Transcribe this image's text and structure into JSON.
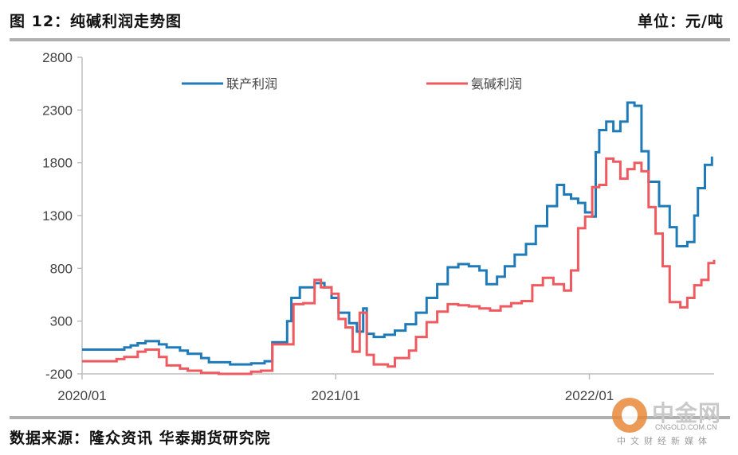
{
  "header": {
    "title": "图 12：纯碱利润走势图",
    "unit": "单位：元/吨"
  },
  "footer": {
    "source": "数据来源：隆众资讯 华泰期货研究院"
  },
  "watermark": {
    "name": "中金网",
    "url": "CNGOLD.COM.CN",
    "slogan": "中文财经新媒体"
  },
  "chart_data": {
    "type": "line",
    "title": "",
    "xlabel": "",
    "ylabel": "",
    "ylim": [
      -200,
      2800
    ],
    "yticks": [
      -200,
      300,
      800,
      1300,
      1800,
      2300,
      2800
    ],
    "xticks": [
      "2020/01",
      "2021/01",
      "2022/01"
    ],
    "xrange_months": [
      "2020/01",
      "2022/03"
    ],
    "grid": false,
    "legend_position": "top",
    "series": [
      {
        "name": "联产利润",
        "color": "#1f7ab8",
        "points": [
          [
            "2020/01/01",
            30
          ],
          [
            "2020/02/01",
            30
          ],
          [
            "2020/03/01",
            50
          ],
          [
            "2020/03/10",
            70
          ],
          [
            "2020/03/20",
            90
          ],
          [
            "2020/04/01",
            110
          ],
          [
            "2020/04/20",
            80
          ],
          [
            "2020/05/01",
            50
          ],
          [
            "2020/05/20",
            20
          ],
          [
            "2020/06/01",
            -10
          ],
          [
            "2020/06/20",
            -50
          ],
          [
            "2020/07/01",
            -90
          ],
          [
            "2020/08/01",
            -110
          ],
          [
            "2020/09/01",
            -100
          ],
          [
            "2020/09/20",
            -80
          ],
          [
            "2020/10/01",
            100
          ],
          [
            "2020/10/15",
            100
          ],
          [
            "2020/10/22",
            300
          ],
          [
            "2020/10/28",
            520
          ],
          [
            "2020/11/10",
            620
          ],
          [
            "2020/12/01",
            660
          ],
          [
            "2020/12/15",
            620
          ],
          [
            "2020/12/25",
            520
          ],
          [
            "2021/01/05",
            380
          ],
          [
            "2021/01/20",
            280
          ],
          [
            "2021/02/01",
            200
          ],
          [
            "2021/02/10",
            420
          ],
          [
            "2021/02/15",
            180
          ],
          [
            "2021/02/25",
            150
          ],
          [
            "2021/03/10",
            170
          ],
          [
            "2021/03/25",
            210
          ],
          [
            "2021/04/10",
            270
          ],
          [
            "2021/04/25",
            380
          ],
          [
            "2021/05/10",
            520
          ],
          [
            "2021/05/25",
            650
          ],
          [
            "2021/06/10",
            810
          ],
          [
            "2021/06/25",
            840
          ],
          [
            "2021/07/10",
            820
          ],
          [
            "2021/07/25",
            780
          ],
          [
            "2021/08/05",
            650
          ],
          [
            "2021/08/20",
            720
          ],
          [
            "2021/09/01",
            820
          ],
          [
            "2021/09/15",
            930
          ],
          [
            "2021/10/01",
            1030
          ],
          [
            "2021/10/15",
            1200
          ],
          [
            "2021/11/01",
            1390
          ],
          [
            "2021/11/15",
            1590
          ],
          [
            "2021/11/25",
            1500
          ],
          [
            "2021/12/05",
            1460
          ],
          [
            "2021/12/15",
            1420
          ],
          [
            "2021/12/25",
            1330
          ],
          [
            "2022/01/05",
            1290
          ],
          [
            "2022/01/10",
            1900
          ],
          [
            "2022/01/15",
            2110
          ],
          [
            "2022/01/25",
            2190
          ],
          [
            "2022/02/05",
            2100
          ],
          [
            "2022/02/15",
            2190
          ],
          [
            "2022/02/25",
            2370
          ],
          [
            "2022/03/05",
            2340
          ],
          [
            "2022/03/15",
            1910
          ],
          [
            "2022/03/25",
            1620
          ],
          [
            "2022/04/10",
            1390
          ],
          [
            "2022/04/25",
            1190
          ],
          [
            "2022/05/05",
            1010
          ],
          [
            "2022/05/20",
            1050
          ],
          [
            "2022/05/30",
            1300
          ],
          [
            "2022/06/05",
            1560
          ],
          [
            "2022/06/15",
            1780
          ],
          [
            "2022/06/25",
            1860
          ]
        ]
      },
      {
        "name": "氨碱利润",
        "color": "#ee5a5f",
        "points": [
          [
            "2020/01/01",
            -80
          ],
          [
            "2020/02/01",
            -80
          ],
          [
            "2020/02/20",
            -60
          ],
          [
            "2020/03/01",
            -40
          ],
          [
            "2020/03/20",
            10
          ],
          [
            "2020/04/01",
            30
          ],
          [
            "2020/04/20",
            -40
          ],
          [
            "2020/05/01",
            -120
          ],
          [
            "2020/05/20",
            -150
          ],
          [
            "2020/06/01",
            -170
          ],
          [
            "2020/06/20",
            -190
          ],
          [
            "2020/07/15",
            -200
          ],
          [
            "2020/08/15",
            -200
          ],
          [
            "2020/09/01",
            -180
          ],
          [
            "2020/09/15",
            -170
          ],
          [
            "2020/10/01",
            80
          ],
          [
            "2020/10/20",
            80
          ],
          [
            "2020/11/01",
            460
          ],
          [
            "2020/11/15",
            470
          ],
          [
            "2020/12/01",
            690
          ],
          [
            "2020/12/10",
            620
          ],
          [
            "2020/12/25",
            560
          ],
          [
            "2021/01/05",
            320
          ],
          [
            "2021/01/15",
            240
          ],
          [
            "2021/01/25",
            10
          ],
          [
            "2021/02/05",
            380
          ],
          [
            "2021/02/15",
            -20
          ],
          [
            "2021/02/25",
            -110
          ],
          [
            "2021/03/15",
            -130
          ],
          [
            "2021/03/25",
            -50
          ],
          [
            "2021/04/15",
            20
          ],
          [
            "2021/04/25",
            150
          ],
          [
            "2021/05/10",
            290
          ],
          [
            "2021/05/25",
            390
          ],
          [
            "2021/06/10",
            460
          ],
          [
            "2021/06/25",
            450
          ],
          [
            "2021/07/10",
            440
          ],
          [
            "2021/07/25",
            420
          ],
          [
            "2021/08/10",
            400
          ],
          [
            "2021/08/25",
            440
          ],
          [
            "2021/09/10",
            470
          ],
          [
            "2021/09/25",
            490
          ],
          [
            "2021/10/10",
            640
          ],
          [
            "2021/10/25",
            710
          ],
          [
            "2021/11/10",
            650
          ],
          [
            "2021/11/25",
            590
          ],
          [
            "2021/12/05",
            780
          ],
          [
            "2021/12/15",
            1180
          ],
          [
            "2021/12/25",
            1290
          ],
          [
            "2022/01/05",
            1570
          ],
          [
            "2022/01/15",
            1590
          ],
          [
            "2022/01/25",
            1840
          ],
          [
            "2022/02/05",
            1810
          ],
          [
            "2022/02/15",
            1650
          ],
          [
            "2022/02/25",
            1740
          ],
          [
            "2022/03/05",
            1800
          ],
          [
            "2022/03/15",
            1720
          ],
          [
            "2022/03/25",
            1380
          ],
          [
            "2022/04/05",
            1130
          ],
          [
            "2022/04/15",
            820
          ],
          [
            "2022/04/25",
            480
          ],
          [
            "2022/05/10",
            430
          ],
          [
            "2022/05/20",
            520
          ],
          [
            "2022/05/30",
            640
          ],
          [
            "2022/06/10",
            690
          ],
          [
            "2022/06/20",
            850
          ],
          [
            "2022/06/28",
            880
          ]
        ]
      }
    ]
  }
}
